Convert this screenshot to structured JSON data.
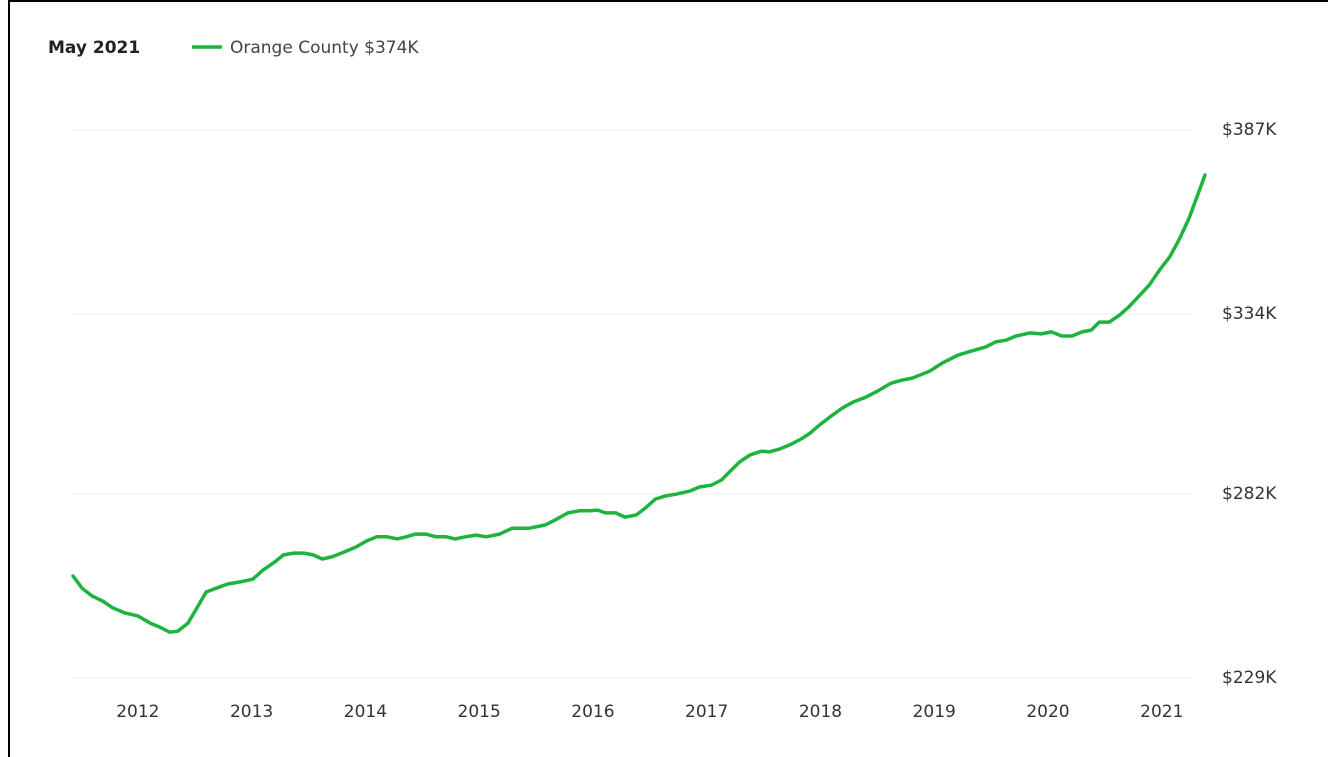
{
  "chart_data": {
    "type": "line",
    "date_label": "May 2021",
    "xlim": [
      2011.43,
      2021.38
    ],
    "xticks": [
      2012,
      2013,
      2014,
      2015,
      2016,
      2017,
      2018,
      2019,
      2020,
      2021
    ],
    "ylim": [
      229000,
      387000
    ],
    "yticks": [
      {
        "value": 229000,
        "label": "$229K"
      },
      {
        "value": 282000,
        "label": "$282K"
      },
      {
        "value": 334000,
        "label": "$334K"
      },
      {
        "value": 387000,
        "label": "$387K"
      }
    ],
    "grid": true,
    "legend": "top-left",
    "x": [
      2011.43,
      2011.51,
      2011.6,
      2011.69,
      2011.78,
      2011.89,
      2012.0,
      2012.11,
      2012.19,
      2012.28,
      2012.35,
      2012.44,
      2012.52,
      2012.6,
      2012.69,
      2012.79,
      2012.9,
      2013.01,
      2013.1,
      2013.2,
      2013.28,
      2013.37,
      2013.46,
      2013.54,
      2013.62,
      2013.7,
      2013.79,
      2013.92,
      2014.01,
      2014.1,
      2014.19,
      2014.28,
      2014.36,
      2014.44,
      2014.53,
      2014.62,
      2014.71,
      2014.79,
      2014.88,
      2014.97,
      2015.06,
      2015.18,
      2015.29,
      2015.44,
      2015.58,
      2015.67,
      2015.78,
      2015.88,
      2015.97,
      2016.04,
      2016.11,
      2016.2,
      2016.28,
      2016.38,
      2016.46,
      2016.55,
      2016.64,
      2016.73,
      2016.85,
      2016.94,
      2017.04,
      2017.13,
      2017.2,
      2017.29,
      2017.38,
      2017.48,
      2017.55,
      2017.64,
      2017.73,
      2017.83,
      2017.91,
      2017.99,
      2018.08,
      2018.19,
      2018.29,
      2018.4,
      2018.5,
      2018.62,
      2018.72,
      2018.81,
      2018.96,
      2019.07,
      2019.21,
      2019.33,
      2019.45,
      2019.54,
      2019.63,
      2019.72,
      2019.84,
      2019.94,
      2020.03,
      2020.12,
      2020.21,
      2020.3,
      2020.38,
      2020.45,
      2020.54,
      2020.63,
      2020.71,
      2020.8,
      2020.89,
      2020.98,
      2021.07,
      2021.16,
      2021.24,
      2021.38
    ],
    "series": [
      {
        "name": "Orange County $374K",
        "color": "#1eb33c",
        "values": [
          258400,
          254900,
          252600,
          251200,
          249200,
          247700,
          246900,
          244800,
          243700,
          242200,
          242500,
          244800,
          249200,
          253800,
          254900,
          256100,
          256700,
          257500,
          260100,
          262400,
          264500,
          265000,
          265000,
          264500,
          263300,
          263900,
          265000,
          266800,
          268500,
          269700,
          269700,
          269100,
          269700,
          270500,
          270500,
          269700,
          269700,
          269100,
          269700,
          270200,
          269700,
          270500,
          272200,
          272200,
          273100,
          274600,
          276600,
          277200,
          277200,
          277400,
          276600,
          276600,
          275400,
          276000,
          278000,
          280600,
          281500,
          282000,
          282900,
          284100,
          284600,
          286100,
          288400,
          291300,
          293300,
          294400,
          294200,
          295000,
          296200,
          297900,
          299600,
          301900,
          304200,
          306800,
          308600,
          310000,
          311700,
          314000,
          314900,
          315500,
          317500,
          319800,
          322100,
          323300,
          324400,
          325900,
          326400,
          327600,
          328500,
          328200,
          328800,
          327600,
          327600,
          328800,
          329300,
          331600,
          331600,
          333700,
          336000,
          339100,
          342300,
          346600,
          350400,
          355900,
          361600,
          374000
        ]
      }
    ]
  }
}
